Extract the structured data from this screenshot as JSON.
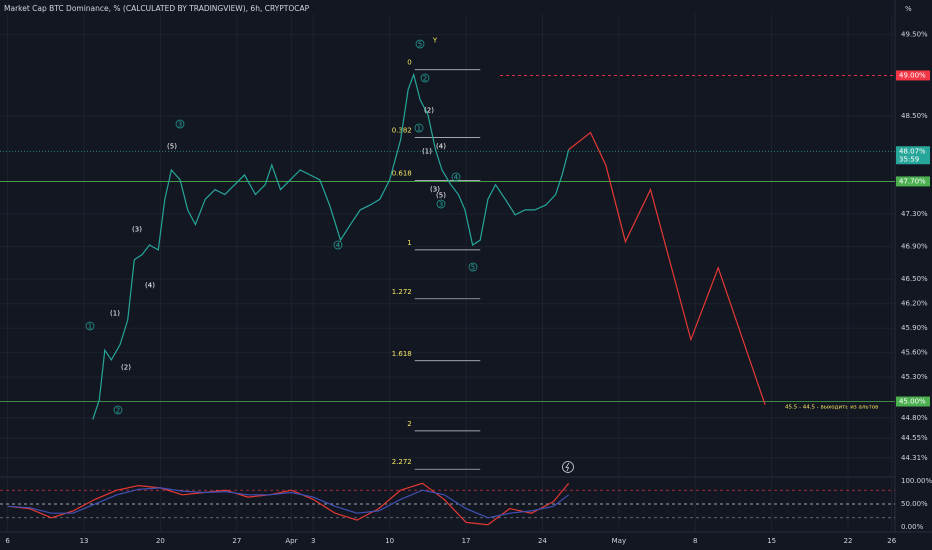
{
  "header": {
    "title": "Market Cap BTC Dominance, % (CALCULATED BY TRADINGVIEW), 6h, CRYPTOCAP",
    "unit": "%"
  },
  "chart_data": [
    {
      "type": "line",
      "xlim": [
        -0.7,
        81.3
      ],
      "ylim": [
        44.16,
        49.68
      ],
      "xticks": [
        {
          "value": 0,
          "label": "6"
        },
        {
          "value": 7,
          "label": "13"
        },
        {
          "value": 14,
          "label": "20"
        },
        {
          "value": 21,
          "label": "27"
        },
        {
          "value": 26,
          "label": "Apr"
        },
        {
          "value": 28,
          "label": "3"
        },
        {
          "value": 35,
          "label": "10"
        },
        {
          "value": 42,
          "label": "17"
        },
        {
          "value": 49,
          "label": "24"
        },
        {
          "value": 56,
          "label": "May"
        },
        {
          "value": 63,
          "label": "8"
        },
        {
          "value": 70,
          "label": "15"
        },
        {
          "value": 77,
          "label": "22"
        },
        {
          "value": 81,
          "label": "26"
        }
      ],
      "yticks": [
        {
          "value": 49.5,
          "label": "49.50%"
        },
        {
          "value": 48.5,
          "label": "48.50%"
        },
        {
          "value": 47.3,
          "label": "47.30%"
        },
        {
          "value": 46.9,
          "label": "46.90%"
        },
        {
          "value": 46.5,
          "label": "46.50%"
        },
        {
          "value": 46.2,
          "label": "46.20%"
        },
        {
          "value": 45.9,
          "label": "45.90%"
        },
        {
          "value": 45.6,
          "label": "45.60%"
        },
        {
          "value": 45.3,
          "label": "45.30%"
        },
        {
          "value": 44.8,
          "label": "44.80%"
        },
        {
          "value": 44.55,
          "label": "44.55%"
        },
        {
          "value": 44.31,
          "label": "44.31%"
        }
      ],
      "series": [
        {
          "color": "#26a69a",
          "x": [
            7.8,
            8.4,
            8.9,
            9.5,
            10.3,
            11.0,
            11.6,
            12.3,
            13.0,
            13.8,
            14.4,
            15.0,
            15.8,
            16.5,
            17.2,
            18.1,
            19.0,
            19.9,
            20.8,
            21.7,
            22.7,
            23.6,
            24.2,
            25.0,
            25.9,
            26.8,
            27.7,
            28.6,
            29.5,
            30.5,
            31.4,
            32.3,
            33.2,
            34.1,
            35.0,
            36.0,
            36.7,
            37.2,
            37.8,
            38.5,
            39.2,
            39.8,
            40.6,
            41.3,
            41.9,
            42.6,
            43.3,
            44.0,
            44.7,
            45.6,
            46.5,
            47.4,
            48.3,
            49.3,
            50.2,
            50.8,
            51.4
          ],
          "values": [
            44.78,
            45.02,
            45.63,
            45.51,
            45.7,
            46.0,
            46.74,
            46.8,
            46.92,
            46.86,
            47.48,
            47.84,
            47.72,
            47.35,
            47.17,
            47.48,
            47.6,
            47.54,
            47.66,
            47.78,
            47.54,
            47.66,
            47.9,
            47.6,
            47.72,
            47.84,
            47.78,
            47.72,
            47.41,
            46.98,
            47.17,
            47.35,
            47.41,
            47.48,
            47.72,
            48.21,
            48.83,
            49.01,
            48.7,
            48.52,
            48.09,
            47.84,
            47.66,
            47.54,
            47.35,
            46.92,
            46.98,
            47.48,
            47.66,
            47.48,
            47.29,
            47.35,
            47.35,
            47.41,
            47.54,
            47.78,
            48.09
          ]
        },
        {
          "color": "#e53935",
          "x": [
            51.4,
            53.4,
            54.8,
            56.6,
            58.9,
            62.6,
            65.1,
            69.4
          ],
          "values": [
            48.09,
            48.3,
            47.9,
            46.96,
            47.6,
            45.76,
            46.64,
            44.96
          ]
        }
      ],
      "levels": [
        {
          "value": 47.7,
          "label": "47.70%",
          "color": "#4caf50",
          "style": "solid"
        },
        {
          "value": 45.0,
          "label": "45.00%",
          "color": "#4caf50",
          "style": "solid"
        },
        {
          "value": 49.0,
          "label": "49.00%",
          "color": "#f23645",
          "style": "dashed"
        },
        {
          "value": 48.07,
          "label": "48.07%",
          "timer": "35:59",
          "color": "#26a69a",
          "style": "dotted"
        }
      ],
      "fib": {
        "color": "#d1d4dc",
        "x": [
          37.3,
          43.3
        ],
        "levels": [
          {
            "ratio": 0,
            "price": 49.07
          },
          {
            "ratio": 0.382,
            "price": 48.24
          },
          {
            "ratio": 0.618,
            "price": 47.71
          },
          {
            "ratio": 1,
            "price": 46.86
          },
          {
            "ratio": 1.272,
            "price": 46.26
          },
          {
            "ratio": 1.618,
            "price": 45.5
          },
          {
            "ratio": 2,
            "price": 44.64
          },
          {
            "ratio": 2.272,
            "price": 44.17
          }
        ]
      },
      "waves": [
        "1",
        "2",
        "3",
        "4",
        "5",
        "1",
        "2",
        "3",
        "4",
        "5",
        "(1)",
        "(2)",
        "(3)",
        "(4)",
        "(5)",
        "(1)",
        "(2)",
        "(3)",
        "(4)",
        "(5)",
        "Y"
      ],
      "annotation": "45.5 - 44.5 - выходить из альтов"
    },
    {
      "type": "line",
      "ylim": [
        -10.9,
        106.5
      ],
      "yticks": [
        {
          "value": 100,
          "label": "100.00%"
        },
        {
          "value": 50,
          "label": "50.00%"
        },
        {
          "value": 0,
          "label": "0.00%"
        }
      ],
      "levels": [
        {
          "value": 80,
          "color": "#f23645"
        },
        {
          "value": 50,
          "color": "#d1d4dc"
        },
        {
          "value": 20,
          "color": "#787b86"
        }
      ],
      "series": [
        {
          "color": "#e53935",
          "x": [
            0,
            2,
            4,
            6,
            8,
            10,
            12,
            14,
            16,
            18,
            20,
            22,
            24,
            26,
            28,
            30,
            32,
            34,
            36,
            38,
            40,
            42,
            44,
            46,
            48,
            50,
            51.4
          ],
          "values": [
            45,
            40,
            20,
            35,
            60,
            80,
            90,
            85,
            70,
            75,
            80,
            65,
            70,
            80,
            60,
            30,
            15,
            40,
            80,
            95,
            60,
            10,
            5,
            40,
            30,
            55,
            95
          ]
        },
        {
          "color": "#3f51b5",
          "x": [
            0,
            2,
            4,
            6,
            8,
            10,
            12,
            14,
            16,
            18,
            20,
            22,
            24,
            26,
            28,
            30,
            32,
            34,
            36,
            38,
            40,
            42,
            44,
            46,
            48,
            50,
            51.4
          ],
          "values": [
            45,
            42,
            30,
            30,
            50,
            70,
            82,
            85,
            78,
            75,
            77,
            70,
            70,
            75,
            65,
            45,
            30,
            35,
            60,
            80,
            70,
            40,
            20,
            30,
            35,
            45,
            70
          ]
        }
      ]
    }
  ]
}
